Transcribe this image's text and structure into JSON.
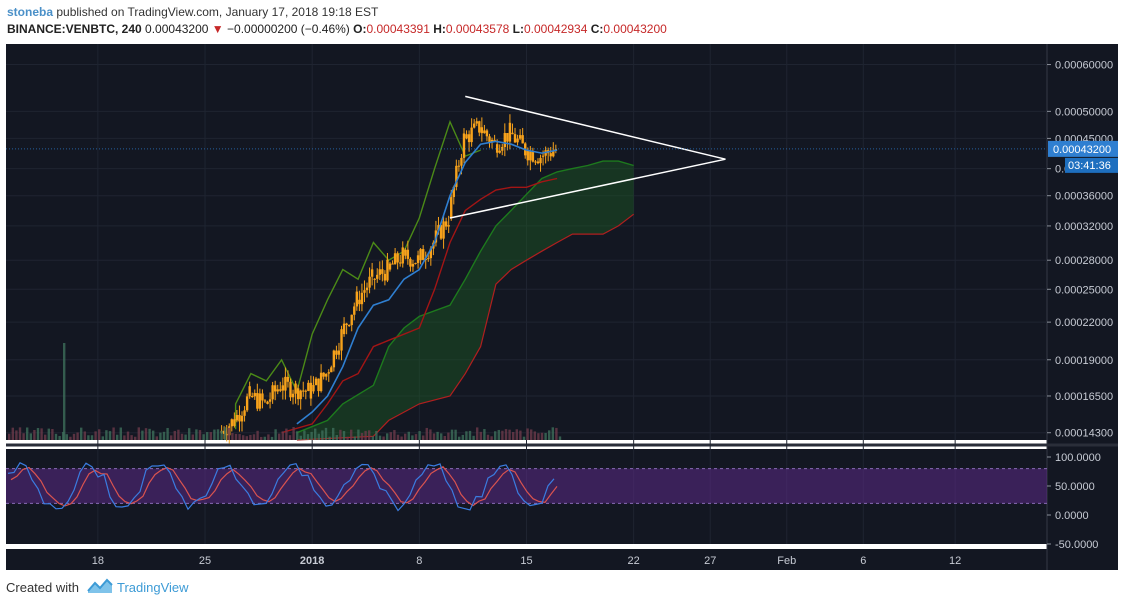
{
  "header": {
    "user": "stoneba",
    "published": " published on TradingView.com, January 17, 2018 19:18 EST",
    "symbol": "BINANCE:VENBTC, 240",
    "last": "0.00043200",
    "down_arrow": "▼",
    "change": "−0.00000200 (−0.46%)",
    "o_label": "O:",
    "o_value": "0.00043391",
    "h_label": "H:",
    "h_value": "0.00043578",
    "l_label": "L:",
    "l_value": "0.00042934",
    "c_label": "C:",
    "c_value": "0.00043200"
  },
  "price_axis": {
    "ticks": [
      "0.00060000",
      "0.00050000",
      "0.00045000",
      "0.00040000",
      "0.00036000",
      "0.00032000",
      "0.00028000",
      "0.00025000",
      "0.00022000",
      "0.00019000",
      "0.00016500",
      "0.00014300"
    ],
    "last_price_label": "0.00043200",
    "countdown_label": "03:41:36"
  },
  "osc_axis": {
    "ticks": [
      "100.0000",
      "50.0000",
      "0.0000",
      "-50.0000"
    ]
  },
  "time_axis": {
    "ticks": [
      "18",
      "25",
      "2018",
      "8",
      "15",
      "22",
      "27",
      "Feb",
      "6",
      "12"
    ]
  },
  "footer": {
    "created_with": "Created with",
    "brand": "TradingView"
  },
  "colors": {
    "background": "#131722",
    "candle_up": "#f7a21b",
    "candle_down": "#f7a21b",
    "conversion_line": "#2f7fd1",
    "base_line": "#a31515",
    "lagging_span": "#4b8a17",
    "cloud_line": "#1d7a1d",
    "cloud_fill": "#1d5a24",
    "trendline": "#ffffff",
    "stoch_k": "#3a7ce0",
    "stoch_d": "#d9534f",
    "stoch_band": "#5b2a86",
    "last_price_badge": "#2f7fd1"
  },
  "chart_data": {
    "type": "candlestick",
    "symbol": "BINANCE:VENBTC",
    "interval": "240",
    "y_scale": "log",
    "ylim": [
      0.000139,
      0.00065
    ],
    "x_range": [
      "2017-12-12",
      "2018-02-18"
    ],
    "candles_close_approx": [
      [
        "2017-12-26",
        0.000143
      ],
      [
        "2017-12-27",
        0.00015
      ],
      [
        "2017-12-28",
        0.000165
      ],
      [
        "2017-12-29",
        0.00016
      ],
      [
        "2017-12-30",
        0.000172
      ],
      [
        "2017-12-31",
        0.00017
      ],
      [
        "2018-01-01",
        0.000168
      ],
      [
        "2018-01-02",
        0.00018
      ],
      [
        "2018-01-03",
        0.00021
      ],
      [
        "2018-01-04",
        0.00024
      ],
      [
        "2018-01-05",
        0.00026
      ],
      [
        "2018-01-06",
        0.00027
      ],
      [
        "2018-01-07",
        0.000285
      ],
      [
        "2018-01-08",
        0.00028
      ],
      [
        "2018-01-09",
        0.0003
      ],
      [
        "2018-01-10",
        0.00033
      ],
      [
        "2018-01-11",
        0.00045
      ],
      [
        "2018-01-12",
        0.00047
      ],
      [
        "2018-01-13",
        0.00044
      ],
      [
        "2018-01-14",
        0.00046
      ],
      [
        "2018-01-15",
        0.00043
      ],
      [
        "2018-01-16",
        0.00042
      ],
      [
        "2018-01-17",
        0.000432
      ]
    ],
    "triangle_apex": [
      "2018-01-28",
      0.000415
    ],
    "stochastic_levels": [
      20,
      80
    ]
  }
}
